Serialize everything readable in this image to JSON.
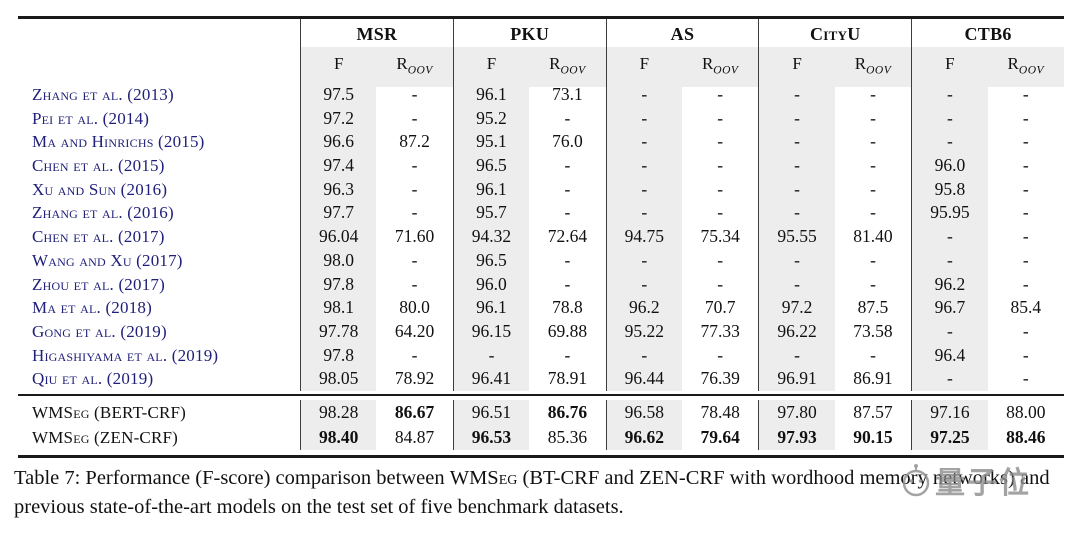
{
  "table": {
    "groups": [
      "MSR",
      "PKU",
      "AS",
      "CityU",
      "CTB6"
    ],
    "subheader": {
      "f": "F",
      "r": "R",
      "r_sub": "OOV"
    },
    "rows": [
      {
        "label": "Zhang et al. (2013)",
        "values": [
          "97.5",
          "-",
          "96.1",
          "73.1",
          "-",
          "-",
          "-",
          "-",
          "-",
          "-"
        ]
      },
      {
        "label": "Pei et al. (2014)",
        "values": [
          "97.2",
          "-",
          "95.2",
          "-",
          "-",
          "-",
          "-",
          "-",
          "-",
          "-"
        ]
      },
      {
        "label": "Ma and Hinrichs (2015)",
        "values": [
          "96.6",
          "87.2",
          "95.1",
          "76.0",
          "-",
          "-",
          "-",
          "-",
          "-",
          "-"
        ]
      },
      {
        "label": "Chen et al. (2015)",
        "values": [
          "97.4",
          "-",
          "96.5",
          "-",
          "-",
          "-",
          "-",
          "-",
          "96.0",
          "-"
        ]
      },
      {
        "label": "Xu and Sun (2016)",
        "values": [
          "96.3",
          "-",
          "96.1",
          "-",
          "-",
          "-",
          "-",
          "-",
          "95.8",
          "-"
        ]
      },
      {
        "label": "Zhang et al. (2016)",
        "values": [
          "97.7",
          "-",
          "95.7",
          "-",
          "-",
          "-",
          "-",
          "-",
          "95.95",
          "-"
        ]
      },
      {
        "label": "Chen et al. (2017)",
        "values": [
          "96.04",
          "71.60",
          "94.32",
          "72.64",
          "94.75",
          "75.34",
          "95.55",
          "81.40",
          "-",
          "-"
        ]
      },
      {
        "label": "Wang and Xu (2017)",
        "values": [
          "98.0",
          "-",
          "96.5",
          "-",
          "-",
          "-",
          "-",
          "-",
          "-",
          "-"
        ]
      },
      {
        "label": "Zhou et al. (2017)",
        "values": [
          "97.8",
          "-",
          "96.0",
          "-",
          "-",
          "-",
          "-",
          "-",
          "96.2",
          "-"
        ]
      },
      {
        "label": "Ma et al. (2018)",
        "values": [
          "98.1",
          "80.0",
          "96.1",
          "78.8",
          "96.2",
          "70.7",
          "97.2",
          "87.5",
          "96.7",
          "85.4"
        ]
      },
      {
        "label": "Gong et al. (2019)",
        "values": [
          "97.78",
          "64.20",
          "96.15",
          "69.88",
          "95.22",
          "77.33",
          "96.22",
          "73.58",
          "-",
          "-"
        ]
      },
      {
        "label": "Higashiyama et al. (2019)",
        "values": [
          "97.8",
          "-",
          "-",
          "-",
          "-",
          "-",
          "-",
          "-",
          "96.4",
          "-"
        ]
      },
      {
        "label": "Qiu et al. (2019)",
        "values": [
          "98.05",
          "78.92",
          "96.41",
          "78.91",
          "96.44",
          "76.39",
          "96.91",
          "86.91",
          "-",
          "-"
        ]
      }
    ],
    "footer_rows": [
      {
        "label": "WMSeg (BERT-CRF)",
        "values": [
          "98.28",
          "86.67",
          "96.51",
          "86.76",
          "96.58",
          "78.48",
          "97.80",
          "87.57",
          "97.16",
          "88.00"
        ],
        "bold": [
          false,
          true,
          false,
          true,
          false,
          false,
          false,
          false,
          false,
          false
        ]
      },
      {
        "label": "WMSeg (ZEN-CRF)",
        "values": [
          "98.40",
          "84.87",
          "96.53",
          "85.36",
          "96.62",
          "79.64",
          "97.93",
          "90.15",
          "97.25",
          "88.46"
        ],
        "bold": [
          true,
          false,
          true,
          false,
          true,
          true,
          true,
          true,
          true,
          true
        ]
      }
    ]
  },
  "caption": {
    "prefix": "Table 7: Performance (F-score) comparison between ",
    "model": "WMSeg",
    "suffix": " (BT-CRF and ZEN-CRF with wordhood memory networks) and previous state-of-the-art models on the test set of five benchmark datasets."
  },
  "watermark": {
    "text": "量子位"
  },
  "colors": {
    "citation_blue": "#20207a",
    "band_gray": "#ededed",
    "rule_black": "#1a1a1a"
  }
}
